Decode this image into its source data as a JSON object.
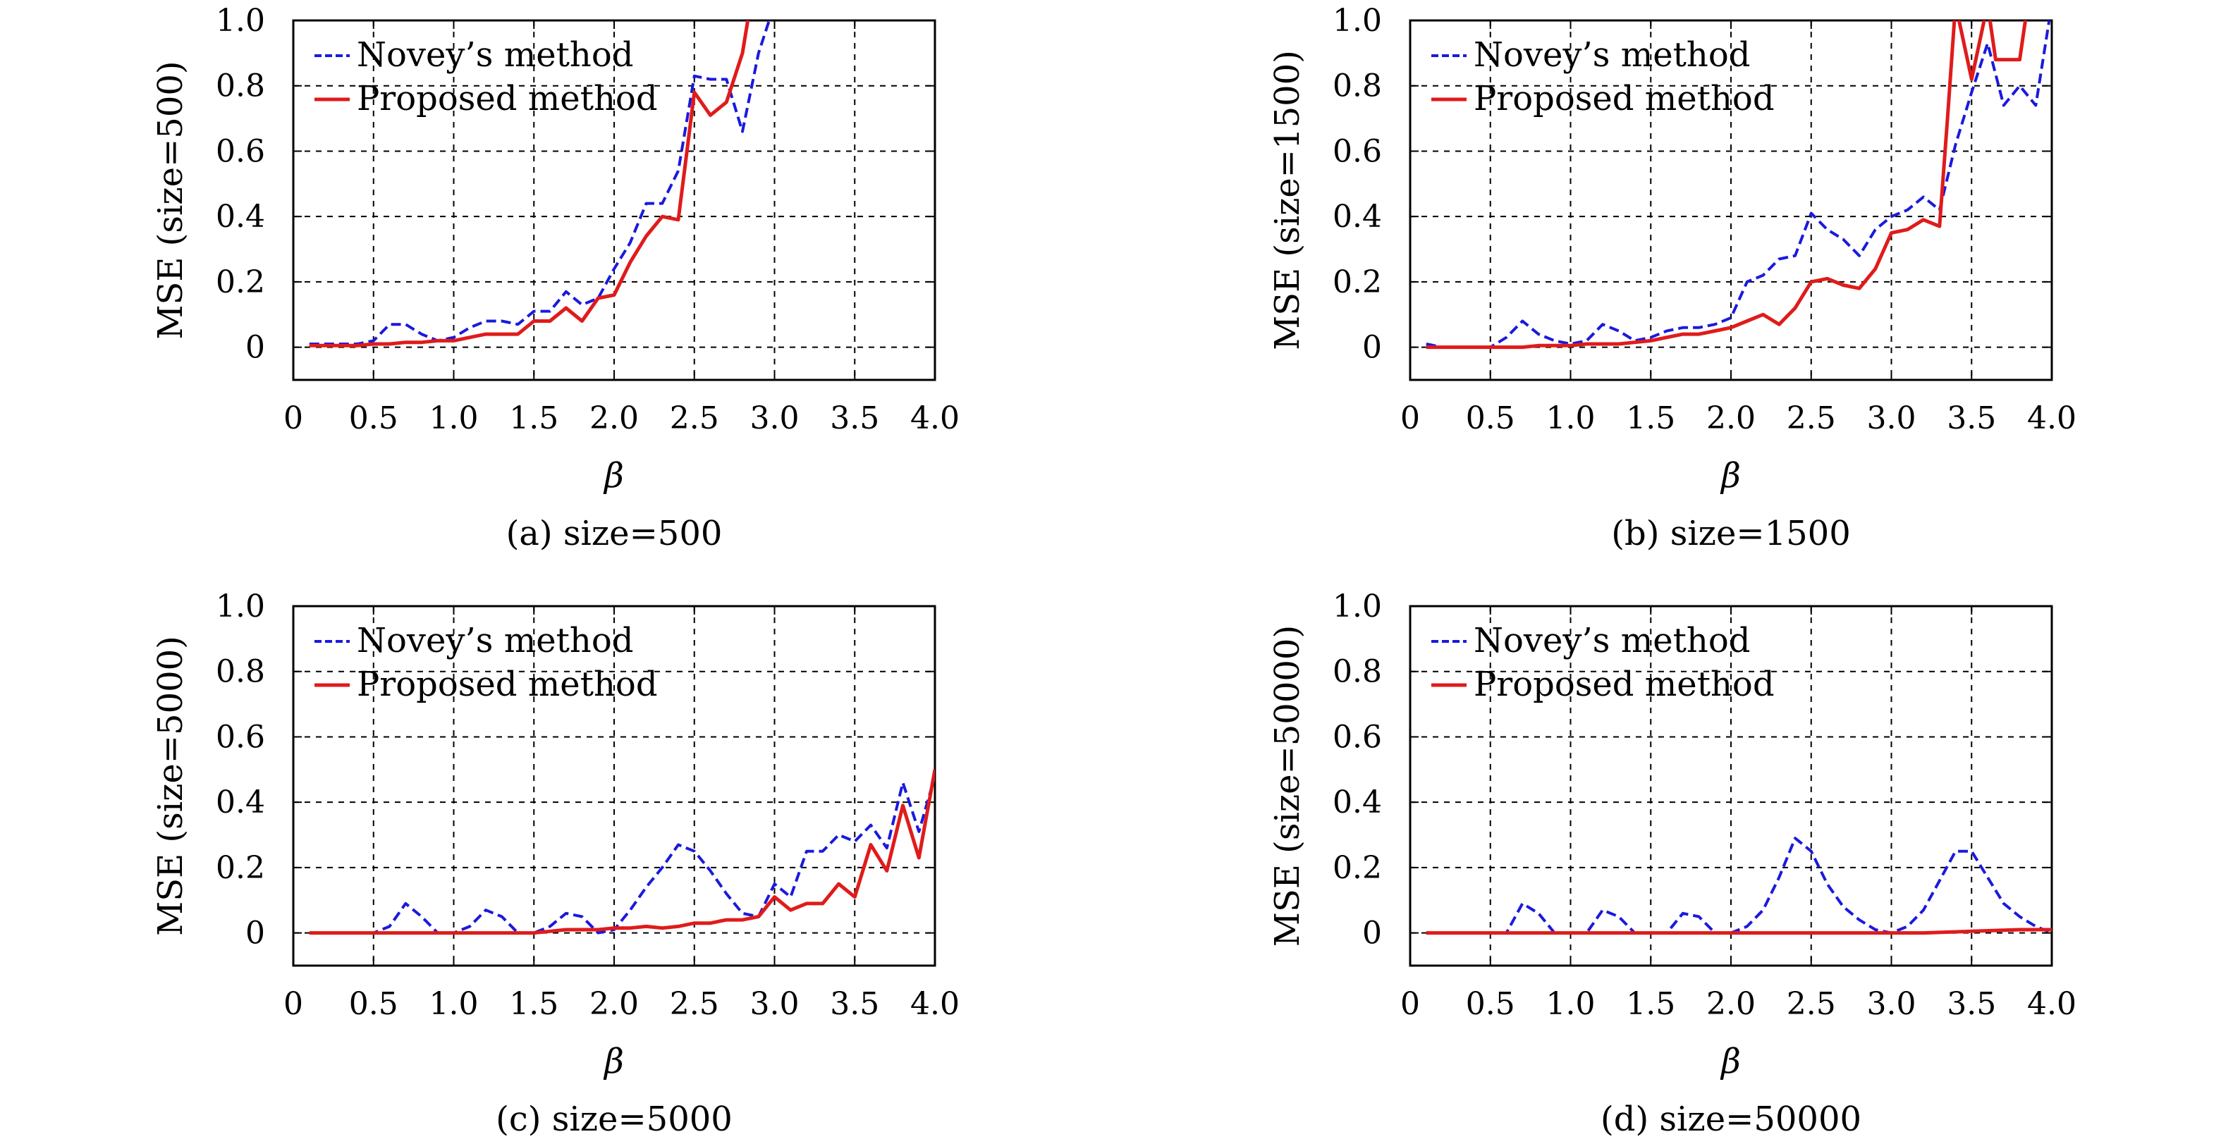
{
  "chart_data": [
    {
      "type": "line",
      "ylabel": "MSE (size=500)",
      "xlabel": "β",
      "caption": "(a) size=500",
      "xlim": [
        0,
        4.0
      ],
      "ylim": [
        -0.1,
        1.0
      ],
      "x_ticks": [
        "0",
        "0.5",
        "1.0",
        "1.5",
        "2.0",
        "2.5",
        "3.0",
        "3.5",
        "4.0"
      ],
      "y_ticks": [
        "0",
        "0.2",
        "0.4",
        "0.6",
        "0.8",
        "1.0"
      ],
      "grid": true,
      "legend_position": "top-left",
      "series": [
        {
          "name": "Novey’s method",
          "color": "#1a1adc",
          "style": "dashed",
          "x": [
            0.1,
            0.2,
            0.3,
            0.4,
            0.5,
            0.6,
            0.7,
            0.8,
            0.9,
            1.0,
            1.1,
            1.2,
            1.3,
            1.4,
            1.5,
            1.6,
            1.7,
            1.8,
            1.9,
            2.0,
            2.1,
            2.2,
            2.3,
            2.4,
            2.5,
            2.6,
            2.7,
            2.8,
            2.9,
            3.0
          ],
          "y": [
            0.01,
            0.01,
            0.01,
            0.01,
            0.02,
            0.07,
            0.07,
            0.04,
            0.02,
            0.03,
            0.06,
            0.08,
            0.08,
            0.07,
            0.11,
            0.11,
            0.17,
            0.13,
            0.15,
            0.24,
            0.32,
            0.44,
            0.44,
            0.54,
            0.83,
            0.82,
            0.82,
            0.66,
            0.9,
            1.05
          ]
        },
        {
          "name": "Proposed method",
          "color": "#e01b1b",
          "style": "solid",
          "x": [
            0.1,
            0.2,
            0.3,
            0.4,
            0.5,
            0.6,
            0.7,
            0.8,
            0.9,
            1.0,
            1.1,
            1.2,
            1.3,
            1.4,
            1.5,
            1.6,
            1.7,
            1.8,
            1.9,
            2.0,
            2.1,
            2.2,
            2.3,
            2.4,
            2.5,
            2.6,
            2.7,
            2.8,
            2.85
          ],
          "y": [
            0.005,
            0.005,
            0.005,
            0.005,
            0.01,
            0.01,
            0.015,
            0.015,
            0.02,
            0.02,
            0.03,
            0.04,
            0.04,
            0.04,
            0.08,
            0.08,
            0.12,
            0.08,
            0.15,
            0.16,
            0.26,
            0.34,
            0.4,
            0.39,
            0.78,
            0.71,
            0.75,
            0.9,
            1.05
          ]
        }
      ]
    },
    {
      "type": "line",
      "ylabel": "MSE (size=1500)",
      "xlabel": "β",
      "caption": "(b) size=1500",
      "xlim": [
        0,
        4.0
      ],
      "ylim": [
        -0.1,
        1.0
      ],
      "x_ticks": [
        "0",
        "0.5",
        "1.0",
        "1.5",
        "2.0",
        "2.5",
        "3.0",
        "3.5",
        "4.0"
      ],
      "y_ticks": [
        "0",
        "0.2",
        "0.4",
        "0.6",
        "0.8",
        "1.0"
      ],
      "grid": true,
      "legend_position": "top-left",
      "series": [
        {
          "name": "Novey’s method",
          "color": "#1a1adc",
          "style": "dashed",
          "x": [
            0.1,
            0.2,
            0.3,
            0.4,
            0.5,
            0.6,
            0.7,
            0.8,
            0.9,
            1.0,
            1.1,
            1.2,
            1.3,
            1.4,
            1.5,
            1.6,
            1.7,
            1.8,
            1.9,
            2.0,
            2.1,
            2.2,
            2.3,
            2.4,
            2.5,
            2.6,
            2.7,
            2.8,
            2.9,
            3.0,
            3.1,
            3.2,
            3.3,
            3.4,
            3.5,
            3.6,
            3.7,
            3.8,
            3.9,
            4.0
          ],
          "y": [
            0.01,
            0.0,
            0.0,
            0.0,
            0.0,
            0.03,
            0.08,
            0.04,
            0.02,
            0.01,
            0.02,
            0.07,
            0.05,
            0.02,
            0.03,
            0.05,
            0.06,
            0.06,
            0.07,
            0.09,
            0.2,
            0.22,
            0.27,
            0.28,
            0.41,
            0.36,
            0.33,
            0.28,
            0.36,
            0.4,
            0.42,
            0.46,
            0.42,
            0.62,
            0.78,
            0.93,
            0.74,
            0.8,
            0.74,
            1.05
          ]
        },
        {
          "name": "Proposed method",
          "color": "#e01b1b",
          "style": "solid",
          "x": [
            0.1,
            0.2,
            0.3,
            0.4,
            0.5,
            0.6,
            0.7,
            0.8,
            0.9,
            1.0,
            1.1,
            1.2,
            1.3,
            1.4,
            1.5,
            1.6,
            1.7,
            1.8,
            1.9,
            2.0,
            2.1,
            2.2,
            2.3,
            2.4,
            2.5,
            2.6,
            2.7,
            2.8,
            2.9,
            3.0,
            3.1,
            3.2,
            3.3,
            3.35,
            3.4,
            3.5,
            3.6,
            3.65,
            3.7,
            3.8,
            3.85
          ],
          "y": [
            0.0,
            0.0,
            0.0,
            0.0,
            0.0,
            0.0,
            0.0,
            0.005,
            0.005,
            0.005,
            0.01,
            0.01,
            0.01,
            0.015,
            0.02,
            0.03,
            0.04,
            0.04,
            0.05,
            0.06,
            0.08,
            0.1,
            0.07,
            0.12,
            0.2,
            0.21,
            0.19,
            0.18,
            0.24,
            0.35,
            0.36,
            0.39,
            0.37,
            0.7,
            1.05,
            0.82,
            1.05,
            0.88,
            0.88,
            0.88,
            1.05
          ]
        }
      ]
    },
    {
      "type": "line",
      "ylabel": "MSE (size=5000)",
      "xlabel": "β",
      "caption": "(c) size=5000",
      "xlim": [
        0,
        4.0
      ],
      "ylim": [
        -0.1,
        1.0
      ],
      "x_ticks": [
        "0",
        "0.5",
        "1.0",
        "1.5",
        "2.0",
        "2.5",
        "3.0",
        "3.5",
        "4.0"
      ],
      "y_ticks": [
        "0",
        "0.2",
        "0.4",
        "0.6",
        "0.8",
        "1.0"
      ],
      "grid": true,
      "legend_position": "top-left",
      "series": [
        {
          "name": "Novey’s method",
          "color": "#1a1adc",
          "style": "dashed",
          "x": [
            0.1,
            0.2,
            0.3,
            0.4,
            0.5,
            0.6,
            0.7,
            0.8,
            0.9,
            1.0,
            1.1,
            1.2,
            1.3,
            1.4,
            1.5,
            1.6,
            1.7,
            1.8,
            1.9,
            2.0,
            2.1,
            2.2,
            2.3,
            2.4,
            2.5,
            2.6,
            2.7,
            2.8,
            2.9,
            3.0,
            3.1,
            3.2,
            3.3,
            3.4,
            3.5,
            3.6,
            3.7,
            3.8,
            3.9,
            4.0
          ],
          "y": [
            0.0,
            0.0,
            0.0,
            0.0,
            0.0,
            0.02,
            0.09,
            0.05,
            0.0,
            0.0,
            0.02,
            0.07,
            0.05,
            0.0,
            0.0,
            0.02,
            0.06,
            0.05,
            0.0,
            0.01,
            0.07,
            0.14,
            0.2,
            0.27,
            0.25,
            0.19,
            0.12,
            0.06,
            0.05,
            0.15,
            0.11,
            0.25,
            0.25,
            0.3,
            0.28,
            0.33,
            0.26,
            0.46,
            0.31,
            0.48
          ]
        },
        {
          "name": "Proposed method",
          "color": "#e01b1b",
          "style": "solid",
          "x": [
            0.1,
            0.2,
            0.3,
            0.4,
            0.5,
            0.6,
            0.7,
            0.8,
            0.9,
            1.0,
            1.1,
            1.2,
            1.3,
            1.4,
            1.5,
            1.6,
            1.7,
            1.8,
            1.9,
            2.0,
            2.1,
            2.2,
            2.3,
            2.4,
            2.5,
            2.6,
            2.7,
            2.8,
            2.9,
            3.0,
            3.1,
            3.2,
            3.3,
            3.4,
            3.5,
            3.6,
            3.7,
            3.8,
            3.9,
            4.0
          ],
          "y": [
            0.0,
            0.0,
            0.0,
            0.0,
            0.0,
            0.0,
            0.0,
            0.0,
            0.0,
            0.0,
            0.0,
            0.0,
            0.0,
            0.0,
            0.0,
            0.005,
            0.01,
            0.01,
            0.01,
            0.015,
            0.015,
            0.02,
            0.015,
            0.02,
            0.03,
            0.03,
            0.04,
            0.04,
            0.05,
            0.11,
            0.07,
            0.09,
            0.09,
            0.15,
            0.11,
            0.27,
            0.19,
            0.39,
            0.23,
            0.5
          ]
        }
      ]
    },
    {
      "type": "line",
      "ylabel": "MSE (size=50000)",
      "xlabel": "β",
      "caption": "(d) size=50000",
      "xlim": [
        0,
        4.0
      ],
      "ylim": [
        -0.1,
        1.0
      ],
      "x_ticks": [
        "0",
        "0.5",
        "1.0",
        "1.5",
        "2.0",
        "2.5",
        "3.0",
        "3.5",
        "4.0"
      ],
      "y_ticks": [
        "0",
        "0.2",
        "0.4",
        "0.6",
        "0.8",
        "1.0"
      ],
      "grid": true,
      "legend_position": "top-left",
      "series": [
        {
          "name": "Novey’s method",
          "color": "#1a1adc",
          "style": "dashed",
          "x": [
            0.1,
            0.2,
            0.3,
            0.4,
            0.5,
            0.6,
            0.7,
            0.8,
            0.9,
            1.0,
            1.1,
            1.2,
            1.3,
            1.4,
            1.5,
            1.6,
            1.7,
            1.8,
            1.9,
            2.0,
            2.1,
            2.2,
            2.3,
            2.4,
            2.5,
            2.6,
            2.7,
            2.8,
            2.9,
            3.0,
            3.1,
            3.2,
            3.3,
            3.4,
            3.5,
            3.6,
            3.7,
            3.8,
            3.9,
            4.0
          ],
          "y": [
            0.0,
            0.0,
            0.0,
            0.0,
            0.0,
            0.0,
            0.09,
            0.06,
            0.0,
            0.0,
            0.0,
            0.07,
            0.05,
            0.0,
            0.0,
            0.0,
            0.06,
            0.05,
            0.0,
            0.0,
            0.02,
            0.07,
            0.17,
            0.29,
            0.25,
            0.15,
            0.08,
            0.04,
            0.01,
            0.0,
            0.02,
            0.07,
            0.16,
            0.25,
            0.25,
            0.17,
            0.09,
            0.05,
            0.02,
            0.0
          ]
        },
        {
          "name": "Proposed method",
          "color": "#e01b1b",
          "style": "solid",
          "x": [
            0.1,
            0.5,
            1.0,
            1.5,
            2.0,
            2.5,
            3.0,
            3.2,
            3.5,
            3.8,
            4.0
          ],
          "y": [
            0.0,
            0.0,
            0.0,
            0.0,
            0.0,
            0.0,
            0.0,
            0.0,
            0.005,
            0.01,
            0.01
          ]
        }
      ]
    }
  ]
}
